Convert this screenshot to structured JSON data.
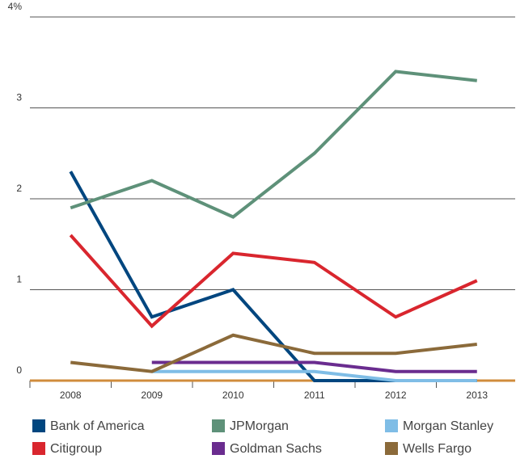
{
  "chart_data": {
    "type": "line",
    "categories": [
      "2008",
      "2009",
      "2010",
      "2011",
      "2012",
      "2013"
    ],
    "series": [
      {
        "name": "Bank of America",
        "color": "#00467f",
        "values": [
          2.3,
          0.7,
          1.0,
          0,
          0,
          0
        ]
      },
      {
        "name": "JPMorgan",
        "color": "#5e9179",
        "values": [
          1.9,
          2.2,
          1.8,
          2.5,
          3.4,
          3.3
        ]
      },
      {
        "name": "Morgan Stanley",
        "color": "#7fbde6",
        "values": [
          null,
          0.1,
          0.1,
          0.1,
          0,
          0
        ]
      },
      {
        "name": "Citigroup",
        "color": "#d9262e",
        "values": [
          1.6,
          0.6,
          1.4,
          1.3,
          0.7,
          1.1
        ]
      },
      {
        "name": "Goldman Sachs",
        "color": "#6a2c8f",
        "values": [
          null,
          0.2,
          0.2,
          0.2,
          0.1,
          0.1
        ]
      },
      {
        "name": "Wells Fargo",
        "color": "#8b6a3a",
        "values": [
          0.2,
          0.1,
          0.5,
          0.3,
          0.3,
          0.4
        ]
      }
    ],
    "ylim": [
      0,
      4
    ],
    "yticks": [
      0,
      1,
      2,
      3,
      {
        "value": 4,
        "label": "4%"
      }
    ],
    "grid": true,
    "baseline_color": "#d08c3c"
  }
}
